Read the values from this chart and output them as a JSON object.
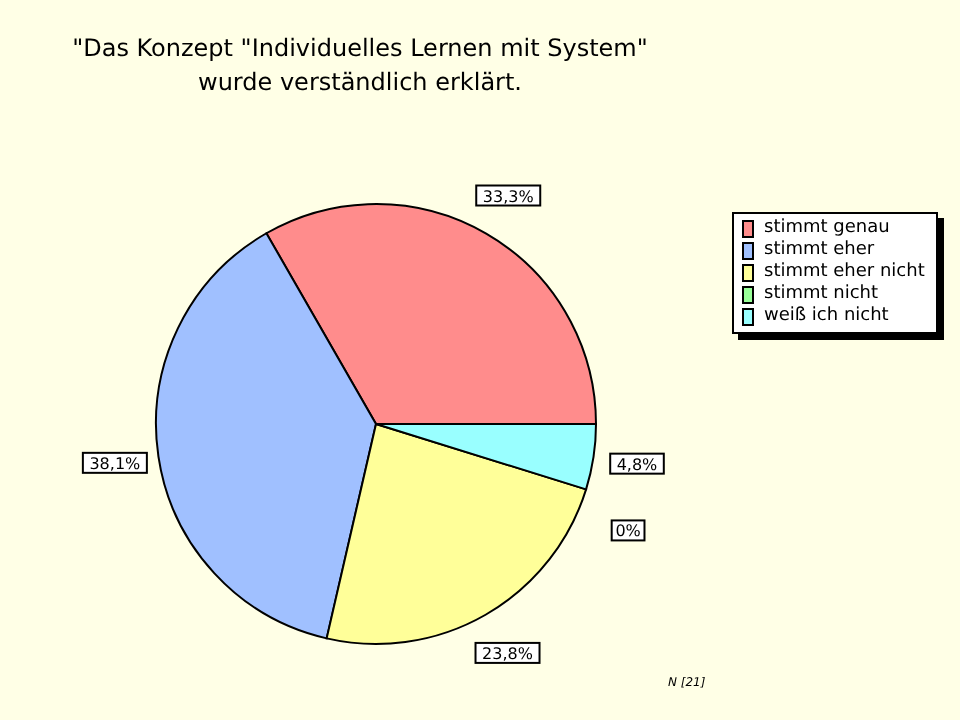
{
  "chart_data": {
    "type": "pie",
    "title": "\"Das Konzept \"Individuelles Lernen mit System\"\nwurde verständlich erklärt.",
    "categories": [
      "stimmt genau",
      "stimmt eher",
      "stimmt eher nicht",
      "stimmt nicht",
      "weiß ich nicht"
    ],
    "values": [
      33.3,
      38.1,
      23.8,
      0,
      4.8
    ],
    "value_labels": [
      "33,3%",
      "38,1%",
      "23,8%",
      "0%",
      "4,8%"
    ],
    "colors": [
      "#ff8c8c",
      "#a0c0ff",
      "#ffff99",
      "#99ff99",
      "#99ffff"
    ],
    "legend": "top right",
    "annotations": [
      "N [21]"
    ]
  }
}
